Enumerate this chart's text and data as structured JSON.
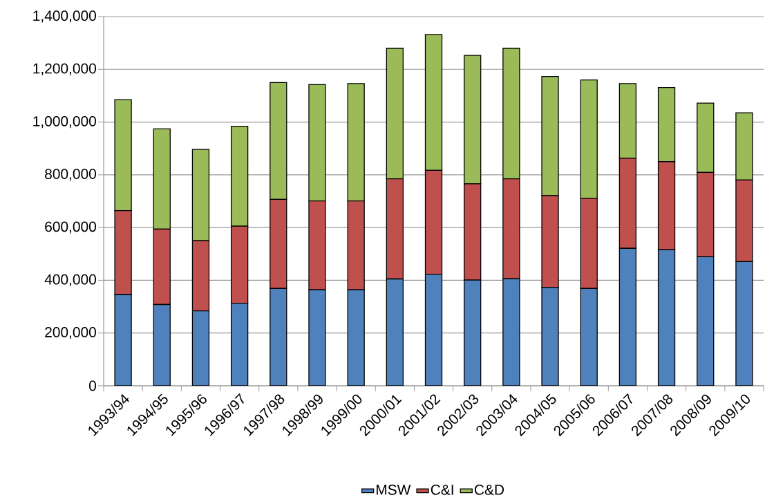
{
  "chart_data": {
    "type": "bar",
    "stacked": true,
    "grid": "y",
    "legend": "bottom",
    "categories": [
      "1993/94",
      "1994/95",
      "1995/96",
      "1996/97",
      "1997/98",
      "1998/99",
      "1999/00",
      "2000/01",
      "2001/02",
      "2002/03",
      "2003/04",
      "2004/05",
      "2005/06",
      "2006/07",
      "2007/08",
      "2008/09",
      "2009/10"
    ],
    "series": [
      {
        "name": "MSW",
        "color": "#4f81bd",
        "values": [
          346000,
          308000,
          284000,
          313000,
          369000,
          364000,
          364000,
          405000,
          423000,
          401000,
          406000,
          373000,
          369000,
          521000,
          516000,
          489000,
          471000
        ]
      },
      {
        "name": "C&I",
        "color": "#c0504d",
        "values": [
          318000,
          286000,
          266000,
          292000,
          338000,
          337000,
          337000,
          380000,
          394000,
          365000,
          379000,
          348000,
          342000,
          342000,
          334000,
          320000,
          309000
        ]
      },
      {
        "name": "C&D",
        "color": "#9bbb59",
        "values": [
          421000,
          380000,
          346000,
          379000,
          443000,
          441000,
          445000,
          495000,
          515000,
          487000,
          495000,
          452000,
          449000,
          283000,
          281000,
          263000,
          255000
        ]
      }
    ],
    "ylim": [
      0,
      1400000
    ],
    "yticks": [
      0,
      {
        "value": 200000,
        "label": "200,000"
      },
      {
        "value": 400000,
        "label": "400,000"
      },
      {
        "value": 600000,
        "label": "600,000"
      },
      {
        "value": 800000,
        "label": "800,000"
      },
      {
        "value": 1000000,
        "label": "1,000,000"
      },
      {
        "value": 1200000,
        "label": "1,200,000"
      },
      {
        "value": 1400000,
        "label": "1,400,000"
      }
    ]
  }
}
